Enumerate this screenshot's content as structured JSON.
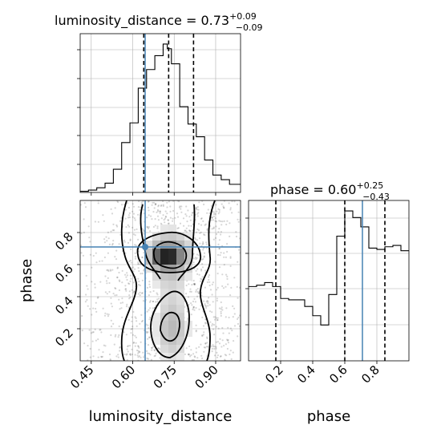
{
  "colors": {
    "truth": "#4682b4",
    "hist": "#000000",
    "density": "#000000"
  },
  "chart_data": [
    {
      "type": "histogram",
      "panel": "luminosity_distance-1d",
      "title": {
        "name": "luminosity_distance",
        "median": "0.73",
        "plus": "+0.09",
        "minus": "−0.09"
      },
      "xlim": [
        0.41,
        0.99
      ],
      "bin_edges": [
        0.41,
        0.44,
        0.47,
        0.5,
        0.53,
        0.56,
        0.59,
        0.62,
        0.65,
        0.68,
        0.71,
        0.725,
        0.74,
        0.77,
        0.8,
        0.83,
        0.86,
        0.89,
        0.92,
        0.95,
        0.99
      ],
      "counts": [
        1,
        2,
        4,
        8,
        20,
        43,
        60,
        90,
        106,
        118,
        128,
        124,
        111,
        74,
        59,
        48,
        28,
        15,
        11,
        7
      ],
      "quantiles": [
        0.64,
        0.73,
        0.82
      ],
      "truth": 0.645
    },
    {
      "type": "histogram",
      "panel": "phase-1d",
      "title": {
        "name": "phase",
        "median": "0.60",
        "plus": "+0.25",
        "minus": "−0.43"
      },
      "xlim": [
        0.0,
        1.0
      ],
      "bin_edges": [
        0,
        0.05,
        0.1,
        0.15,
        0.2,
        0.25,
        0.3,
        0.35,
        0.4,
        0.45,
        0.5,
        0.55,
        0.6,
        0.65,
        0.7,
        0.75,
        0.8,
        0.85,
        0.9,
        0.95,
        1.0
      ],
      "counts": [
        56,
        57,
        59,
        56,
        47,
        46,
        46,
        41,
        34,
        27,
        50,
        94,
        113,
        108,
        101,
        85,
        84,
        86,
        87,
        83
      ],
      "quantiles": [
        0.17,
        0.6,
        0.85
      ],
      "truth": 0.71,
      "xticks": [
        "0.2",
        "0.4",
        "0.6",
        "0.8"
      ],
      "xlabel": "phase"
    },
    {
      "type": "scatter-density",
      "panel": "2d",
      "x": "luminosity_distance",
      "y": "phase",
      "xlim": [
        0.41,
        0.99
      ],
      "ylim": [
        0.0,
        1.0
      ],
      "xticks": [
        "0.45",
        "0.60",
        "0.75",
        "0.90"
      ],
      "yticks": [
        "0.2",
        "0.4",
        "0.6",
        "0.8"
      ],
      "xlabel": "luminosity_distance",
      "ylabel": "phase",
      "truth": [
        0.645,
        0.71
      ],
      "density_modes": [
        [
          0.72,
          0.66
        ],
        [
          0.74,
          0.22
        ]
      ]
    }
  ]
}
